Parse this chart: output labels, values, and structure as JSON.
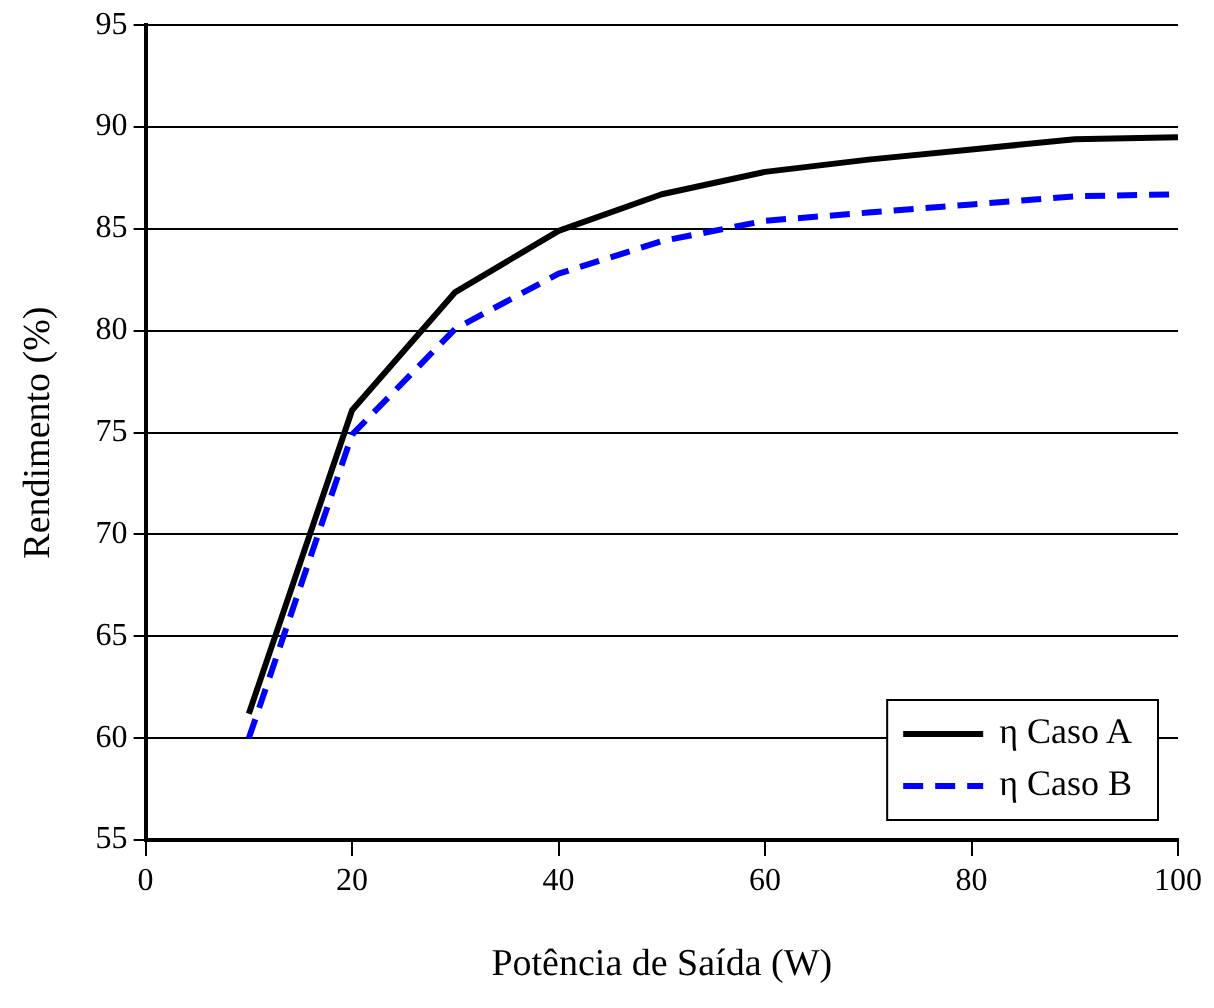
{
  "chart_data": {
    "type": "line",
    "xlabel": "Potência de Saída (W)",
    "ylabel": "Rendimento (%)",
    "x": [
      10,
      20,
      30,
      40,
      50,
      60,
      70,
      80,
      90,
      100
    ],
    "series": [
      {
        "name": "η Caso A",
        "color": "#000000",
        "line_style": "solid",
        "values": [
          61.2,
          76.1,
          81.9,
          84.9,
          86.7,
          87.8,
          88.4,
          88.9,
          89.4,
          89.5
        ]
      },
      {
        "name": "η Caso B",
        "color": "#0000ff",
        "line_style": "dashed",
        "values": [
          60,
          74.9,
          80.1,
          82.8,
          84.4,
          85.4,
          85.8,
          86.2,
          86.6,
          86.7
        ]
      }
    ],
    "xlim": [
      0,
      100
    ],
    "xticks": [
      0,
      20,
      40,
      60,
      80,
      100
    ],
    "ylim": [
      55,
      95
    ],
    "yticks": [
      55,
      60,
      65,
      70,
      75,
      80,
      85,
      90,
      95
    ],
    "grid": "y",
    "legend": "bottom right",
    "marker": "none"
  }
}
